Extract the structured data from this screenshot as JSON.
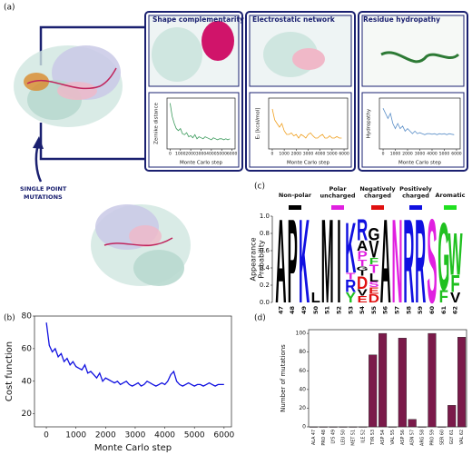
{
  "panels": [
    "(a)",
    "(b)",
    "(c)",
    "(d)"
  ],
  "diagram": {
    "boxes": [
      "Shape complementarity",
      "Electrostatic network",
      "Residue hydropathy"
    ],
    "mutation_label": [
      "SINGLE POINT",
      "MUTATIONS"
    ]
  },
  "chart_data": [
    {
      "type": "line",
      "ylabel": "Zernike distance",
      "xlabel": "Monte Carlo step",
      "color": "#3a9a5b",
      "x": [
        0,
        200,
        400,
        600,
        800,
        1000,
        1200,
        1400,
        1600,
        1800,
        2000,
        2200,
        2400,
        2600,
        2800,
        3000,
        3200,
        3400,
        3600,
        3800,
        4000,
        4200,
        4400,
        4600,
        4800,
        5000,
        5200,
        5400,
        5600,
        5800
      ],
      "values": [
        0.55,
        0.42,
        0.35,
        0.3,
        0.28,
        0.3,
        0.25,
        0.24,
        0.26,
        0.22,
        0.23,
        0.21,
        0.24,
        0.2,
        0.22,
        0.21,
        0.2,
        0.22,
        0.21,
        0.2,
        0.19,
        0.21,
        0.2,
        0.19,
        0.2,
        0.2,
        0.19,
        0.2,
        0.19,
        0.2
      ],
      "xlim": [
        -300,
        6300
      ],
      "ylim": [
        0.1,
        0.6
      ],
      "xticks": [
        0,
        1000,
        2000,
        3000,
        4000,
        5000,
        6000
      ]
    },
    {
      "type": "line",
      "ylabel": "Eₛ [kcal/mol]",
      "xlabel": "Monte Carlo step",
      "color": "#f0a020",
      "x": [
        0,
        200,
        400,
        600,
        800,
        1000,
        1200,
        1400,
        1600,
        1800,
        2000,
        2200,
        2400,
        2600,
        2800,
        3000,
        3200,
        3400,
        3600,
        3800,
        4000,
        4200,
        4400,
        4600,
        4800,
        5000,
        5200,
        5400,
        5600,
        5800
      ],
      "values": [
        -5,
        -20,
        -25,
        -30,
        -25,
        -35,
        -40,
        -40,
        -38,
        -42,
        -40,
        -45,
        -40,
        -42,
        -45,
        -40,
        -38,
        -42,
        -45,
        -45,
        -42,
        -40,
        -45,
        -45,
        -42,
        -45,
        -45,
        -43,
        -45,
        -45
      ],
      "xlim": [
        -300,
        6300
      ],
      "ylim": [
        -60,
        10
      ],
      "xticks": [
        0,
        1000,
        2000,
        3000,
        4000,
        5000,
        6000
      ]
    },
    {
      "type": "line",
      "ylabel": "Hydropathy",
      "xlabel": "Monte Carlo step",
      "color": "#5b8fc8",
      "x": [
        0,
        200,
        400,
        600,
        800,
        1000,
        1200,
        1400,
        1600,
        1800,
        2000,
        2200,
        2400,
        2600,
        2800,
        3000,
        3200,
        3400,
        3600,
        3800,
        4000,
        4200,
        4400,
        4600,
        4800,
        5000,
        5200,
        5400,
        5600,
        5800
      ],
      "values": [
        6,
        5,
        4,
        5,
        3,
        2,
        3,
        2,
        2.5,
        1.5,
        2,
        1.5,
        1,
        1.5,
        1,
        1.2,
        1,
        0.8,
        1,
        1,
        0.9,
        1,
        0.8,
        1,
        0.9,
        1,
        0.8,
        1,
        0.9,
        0.8
      ],
      "xlim": [
        -300,
        6300
      ],
      "ylim": [
        -2,
        8
      ],
      "xticks": [
        0,
        1000,
        2000,
        3000,
        4000,
        5000,
        6000
      ]
    },
    {
      "type": "logo",
      "ylabel": "Appearance Probability",
      "groups": [
        {
          "name": "Non-polar",
          "color": "#000000"
        },
        {
          "name": "Polar uncharged",
          "color": "#e020e0"
        },
        {
          "name": "Negatively charged",
          "color": "#e01010"
        },
        {
          "name": "Positively charged",
          "color": "#1010e0"
        },
        {
          "name": "Aromatic",
          "color": "#20e020"
        }
      ],
      "categories": [
        "47",
        "48",
        "49",
        "50",
        "51",
        "52",
        "53",
        "54",
        "55",
        "56",
        "57",
        "58",
        "59",
        "60",
        "61",
        "62"
      ],
      "stacks": [
        [
          {
            "letter": "A",
            "value": 1.0,
            "color": "#000000"
          }
        ],
        [
          {
            "letter": "P",
            "value": 1.0,
            "color": "#000000"
          }
        ],
        [
          {
            "letter": "K",
            "value": 1.0,
            "color": "#1010e0"
          }
        ],
        [
          {
            "letter": "L",
            "value": 0.12,
            "color": "#000000"
          }
        ],
        [
          {
            "letter": "M",
            "value": 1.0,
            "color": "#000000"
          }
        ],
        [
          {
            "letter": "I",
            "value": 1.0,
            "color": "#000000"
          }
        ],
        [
          {
            "letter": "Y",
            "value": 0.12,
            "color": "#20c020"
          },
          {
            "letter": "R",
            "value": 0.15,
            "color": "#1010e0"
          },
          {
            "letter": "T",
            "value": 0.08,
            "color": "#e020e0"
          },
          {
            "letter": "K",
            "value": 0.6,
            "color": "#1010e0"
          }
        ],
        [
          {
            "letter": "E",
            "value": 0.08,
            "color": "#e01010"
          },
          {
            "letter": "V",
            "value": 0.08,
            "color": "#000000"
          },
          {
            "letter": "D",
            "value": 0.15,
            "color": "#e01010"
          },
          {
            "letter": "I",
            "value": 0.06,
            "color": "#000000"
          },
          {
            "letter": "G",
            "value": 0.05,
            "color": "#000000"
          },
          {
            "letter": "T",
            "value": 0.08,
            "color": "#e020e0"
          },
          {
            "letter": "P",
            "value": 0.1,
            "color": "#e020e0"
          },
          {
            "letter": "A",
            "value": 0.12,
            "color": "#000000"
          },
          {
            "letter": "R",
            "value": 0.25,
            "color": "#1010e0"
          }
        ],
        [
          {
            "letter": "D",
            "value": 0.1,
            "color": "#e01010"
          },
          {
            "letter": "E",
            "value": 0.08,
            "color": "#e01010"
          },
          {
            "letter": "S",
            "value": 0.06,
            "color": "#e020e0"
          },
          {
            "letter": "L",
            "value": 0.1,
            "color": "#000000"
          },
          {
            "letter": "T",
            "value": 0.1,
            "color": "#e020e0"
          },
          {
            "letter": "F",
            "value": 0.08,
            "color": "#20c020"
          },
          {
            "letter": "V",
            "value": 0.2,
            "color": "#000000"
          },
          {
            "letter": "G",
            "value": 0.15,
            "color": "#000000"
          }
        ],
        [
          {
            "letter": "A",
            "value": 1.0,
            "color": "#000000"
          }
        ],
        [
          {
            "letter": "N",
            "value": 1.0,
            "color": "#e020e0"
          }
        ],
        [
          {
            "letter": "R",
            "value": 1.0,
            "color": "#1010e0"
          }
        ],
        [
          {
            "letter": "R",
            "value": 1.0,
            "color": "#1010e0"
          }
        ],
        [
          {
            "letter": "S",
            "value": 1.0,
            "color": "#e020e0"
          }
        ],
        [
          {
            "letter": "F",
            "value": 0.15,
            "color": "#20c020"
          },
          {
            "letter": "G",
            "value": 0.8,
            "color": "#20c020"
          }
        ],
        [
          {
            "letter": "V",
            "value": 0.12,
            "color": "#000000"
          },
          {
            "letter": "F",
            "value": 0.2,
            "color": "#20c020"
          },
          {
            "letter": "W",
            "value": 0.5,
            "color": "#20c020"
          }
        ]
      ],
      "ylim": [
        0,
        1
      ],
      "yticks": [
        {
          "value": 0,
          "label": "0.0"
        },
        {
          "value": 0.2,
          "label": "0.2"
        },
        {
          "value": 0.4,
          "label": "0.4"
        },
        {
          "value": 0.6,
          "label": "0.6"
        },
        {
          "value": 0.8,
          "label": "0.8"
        },
        {
          "value": 1,
          "label": "1.0"
        }
      ]
    },
    {
      "type": "line",
      "ylabel": "Cost function",
      "xlabel": "Monte Carlo step",
      "color": "#1010e0",
      "x": [
        0,
        100,
        200,
        300,
        400,
        500,
        600,
        700,
        800,
        900,
        1000,
        1100,
        1200,
        1300,
        1400,
        1500,
        1600,
        1700,
        1800,
        1900,
        2000,
        2100,
        2200,
        2300,
        2400,
        2500,
        2600,
        2700,
        2800,
        2900,
        3000,
        3100,
        3200,
        3300,
        3400,
        3500,
        3600,
        3700,
        3800,
        3900,
        4000,
        4100,
        4200,
        4300,
        4400,
        4500,
        4600,
        4700,
        4800,
        4900,
        5000,
        5100,
        5200,
        5300,
        5400,
        5500,
        5600,
        5700,
        5800,
        5900,
        6000
      ],
      "values": [
        76,
        62,
        58,
        60,
        55,
        57,
        52,
        54,
        50,
        52,
        49,
        48,
        47,
        50,
        45,
        46,
        44,
        42,
        45,
        40,
        42,
        41,
        40,
        39,
        40,
        38,
        39,
        40,
        38,
        37,
        38,
        39,
        37,
        38,
        40,
        39,
        38,
        37,
        38,
        39,
        38,
        40,
        44,
        46,
        40,
        38,
        37,
        38,
        39,
        38,
        37,
        38,
        38,
        37,
        38,
        39,
        38,
        37,
        38,
        38,
        38
      ],
      "xlim": [
        -400,
        6250
      ],
      "ylim": [
        12,
        80
      ],
      "xticks": [
        0,
        1000,
        2000,
        3000,
        4000,
        5000,
        6000
      ],
      "yticks": [
        20,
        40,
        60,
        80
      ]
    },
    {
      "type": "bar",
      "ylabel": "Number of mutations",
      "color": "#7b1a4a",
      "categories": [
        "ALA 47",
        "PRO 48",
        "LYS 49",
        "LEU 50",
        "MET 51",
        "ILE 52",
        "TYR 53",
        "ASP 54",
        "VAL 55",
        "ASP 56",
        "ASN 57",
        "ARG 58",
        "PRO 59",
        "SER 60",
        "GLY 61",
        "VAL 62"
      ],
      "values": [
        0,
        0,
        0,
        0,
        0,
        0,
        77,
        100,
        0,
        95,
        8,
        0,
        100,
        0,
        23,
        96
      ],
      "ylim": [
        0,
        104
      ],
      "yticks": [
        0,
        20,
        40,
        60,
        80,
        100
      ]
    }
  ]
}
